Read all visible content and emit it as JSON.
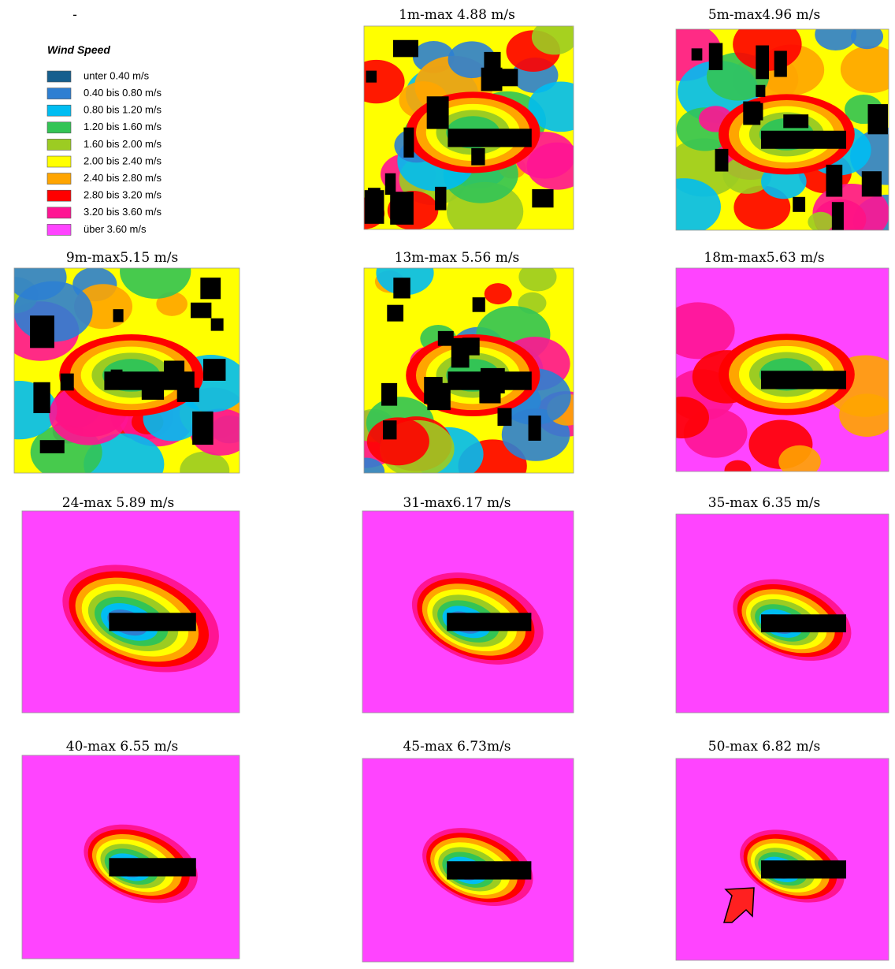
{
  "panel_titles": [
    "-",
    "1m-max 4.88 m/s",
    "5m-max4.96 m/s",
    "9m-max5.15 m/s",
    "13m-max 5.56 m/s",
    "18m-max5.63 m/s",
    "24-max 5.89 m/s",
    "31-max6.17 m/s",
    "35-max 6.35 m/s",
    "40-max 6.55 m/s",
    "45-max 6.73m/s",
    "50-max 6.82 m/s"
  ],
  "legend": {
    "title": "Wind Speed",
    "items": [
      {
        "label": "unter 0.40 m/s",
        "color": "#165f8e"
      },
      {
        "label": "0.40 bis 0.80 m/s",
        "color": "#2e7fd2"
      },
      {
        "label": "0.80 bis 1.20 m/s",
        "color": "#00bdf2"
      },
      {
        "label": "1.20 bis 1.60 m/s",
        "color": "#33c455"
      },
      {
        "label": "1.60 bis 2.00 m/s",
        "color": "#9ccc22"
      },
      {
        "label": "2.00 bis 2.40 m/s",
        "color": "#ffff00"
      },
      {
        "label": "2.40 bis 2.80 m/s",
        "color": "#ffa500"
      },
      {
        "label": "2.80 bis 3.20 m/s",
        "color": "#ff0000"
      },
      {
        "label": "3.20 bis 3.60 m/s",
        "color": "#ff1493"
      },
      {
        "label": "über 3.60 m/s",
        "color": "#ff44ff"
      }
    ]
  }
}
